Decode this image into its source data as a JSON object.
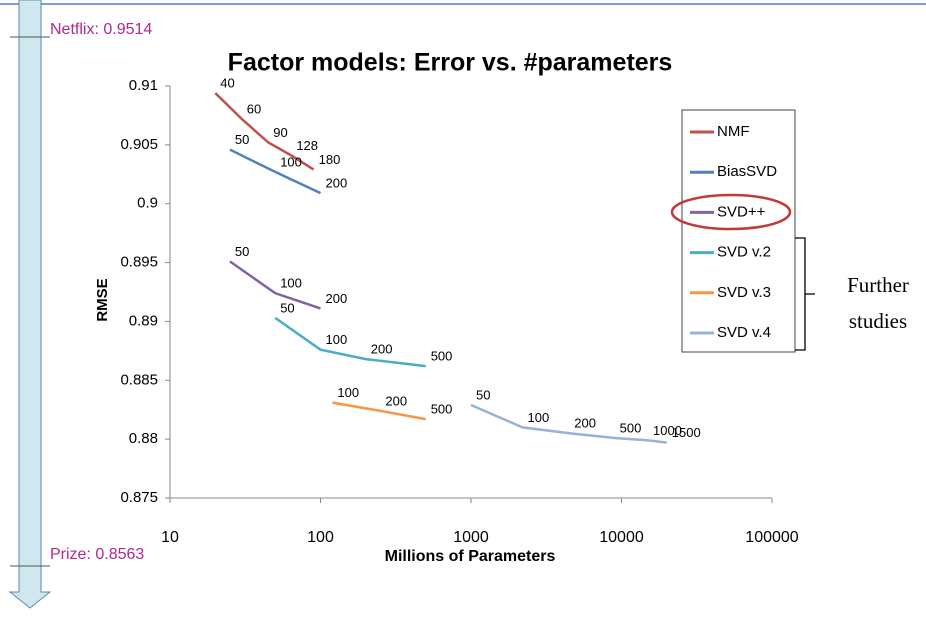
{
  "chart_data": {
    "type": "line",
    "title": "Factor models: Error vs. #parameters",
    "xlabel": "Millions of Parameters",
    "ylabel": "RMSE",
    "xscale": "log",
    "xlim": [
      10,
      100000
    ],
    "xticks": [
      10,
      100,
      1000,
      10000,
      100000
    ],
    "ylim": [
      0.875,
      0.91
    ],
    "yticks": [
      0.875,
      0.88,
      0.885,
      0.89,
      0.895,
      0.9,
      0.905,
      0.91
    ],
    "grid": false,
    "legend": "right",
    "series": [
      {
        "name": "NMF",
        "color": "#c0504d",
        "x": [
          20,
          30,
          45,
          64,
          90
        ],
        "values": [
          0.9094,
          0.9072,
          0.9052,
          0.9041,
          0.9029
        ],
        "point_labels": [
          "40",
          "60",
          "90",
          "128",
          "180"
        ]
      },
      {
        "name": "BiasSVD",
        "color": "#4f81bd",
        "x": [
          25,
          50,
          100
        ],
        "values": [
          0.9046,
          0.9027,
          0.9009
        ],
        "point_labels": [
          "50",
          "100",
          "200"
        ]
      },
      {
        "name": "SVD++",
        "color": "#8064a2",
        "x": [
          25,
          50,
          100
        ],
        "values": [
          0.8951,
          0.8924,
          0.8911
        ],
        "point_labels": [
          "50",
          "100",
          "200"
        ]
      },
      {
        "name": "SVD v.2",
        "color": "#4bacc6",
        "x": [
          50,
          100,
          200,
          500
        ],
        "values": [
          0.8903,
          0.8876,
          0.8868,
          0.8862
        ],
        "point_labels": [
          "50",
          "100",
          "200",
          "500"
        ]
      },
      {
        "name": "SVD v.3",
        "color": "#f79646",
        "x": [
          120,
          250,
          500
        ],
        "values": [
          0.8831,
          0.8824,
          0.8817
        ],
        "point_labels": [
          "100",
          "200",
          "500"
        ]
      },
      {
        "name": "SVD v.4",
        "color": "#95b3d7",
        "x": [
          1000,
          2200,
          4500,
          9000,
          15000,
          20000
        ],
        "values": [
          0.8829,
          0.881,
          0.8805,
          0.8801,
          0.8799,
          0.8797
        ],
        "point_labels": [
          "50",
          "100",
          "200",
          "500",
          "1000",
          "1500"
        ]
      }
    ],
    "annotations": {
      "top": "Netflix: 0.9514",
      "bottom": "Prize: 0.8563",
      "bracket": [
        "Further",
        "studies"
      ]
    }
  }
}
